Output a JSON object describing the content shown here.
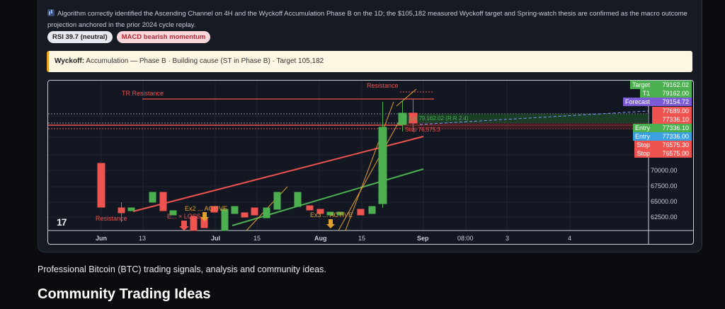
{
  "summary": "Algorithm correctly identified the Ascending Channel on 4H and the Wyckoff Accumulation Phase B on the 1D; the $105,182 measured Wyckoff target and Spring-watch thesis are confirmed as the macro outcome projection anchored in the prior 2024 cycle replay.",
  "badges": {
    "rsi": "RSI 39.7 (neutral)",
    "macd": "MACD bearish momentum"
  },
  "wyckoff": {
    "label": "Wyckoff:",
    "text": "Accumulation — Phase B · Building cause (ST in Phase B) · Target 105,182"
  },
  "chart": {
    "annotations": {
      "tr_resistance": "TR Resistance",
      "resistance_top": "Resistance",
      "resistance_left": "Resistance",
      "ex2": "Ex2 ... ACTIVE",
      "loss": "E... × LOSS",
      "ex3": "Ex3 ... ACTIVE",
      "target_box": "get 79,162.02 (R:R 2.4)",
      "stop_box": "Stop 76,575.3"
    },
    "tags": [
      {
        "name": "Target",
        "value": "79162.02",
        "color": "#4caf50"
      },
      {
        "name": "T1",
        "value": "79162.00",
        "color": "#4caf50"
      },
      {
        "name": "Forecast",
        "value": "79154.72",
        "color": "#7b5cd6"
      },
      {
        "name": "",
        "value": "77689.00",
        "color": "#ef5350"
      },
      {
        "name": "",
        "value": "77336.10",
        "color": "#ef5350"
      },
      {
        "name": "Entry",
        "value": "77336.10",
        "color": "#4caf50"
      },
      {
        "name": "Entry",
        "value": "77336.00",
        "color": "#3aa0e0"
      },
      {
        "name": "Stop",
        "value": "76575.30",
        "color": "#ef5350"
      },
      {
        "name": "Stop",
        "value": "76575.00",
        "color": "#ef5350"
      }
    ],
    "price_labels": [
      "70000.00",
      "67500.00",
      "65000.00",
      "62500.00"
    ],
    "time_labels": [
      "Jun",
      "13",
      "Jul",
      "15",
      "Aug",
      "15",
      "Sep",
      "08:00",
      "3",
      "4"
    ],
    "logo": "17"
  },
  "footer_text": "Professional Bitcoin (BTC) trading signals, analysis and community ideas.",
  "heading": "Community Trading Ideas"
}
